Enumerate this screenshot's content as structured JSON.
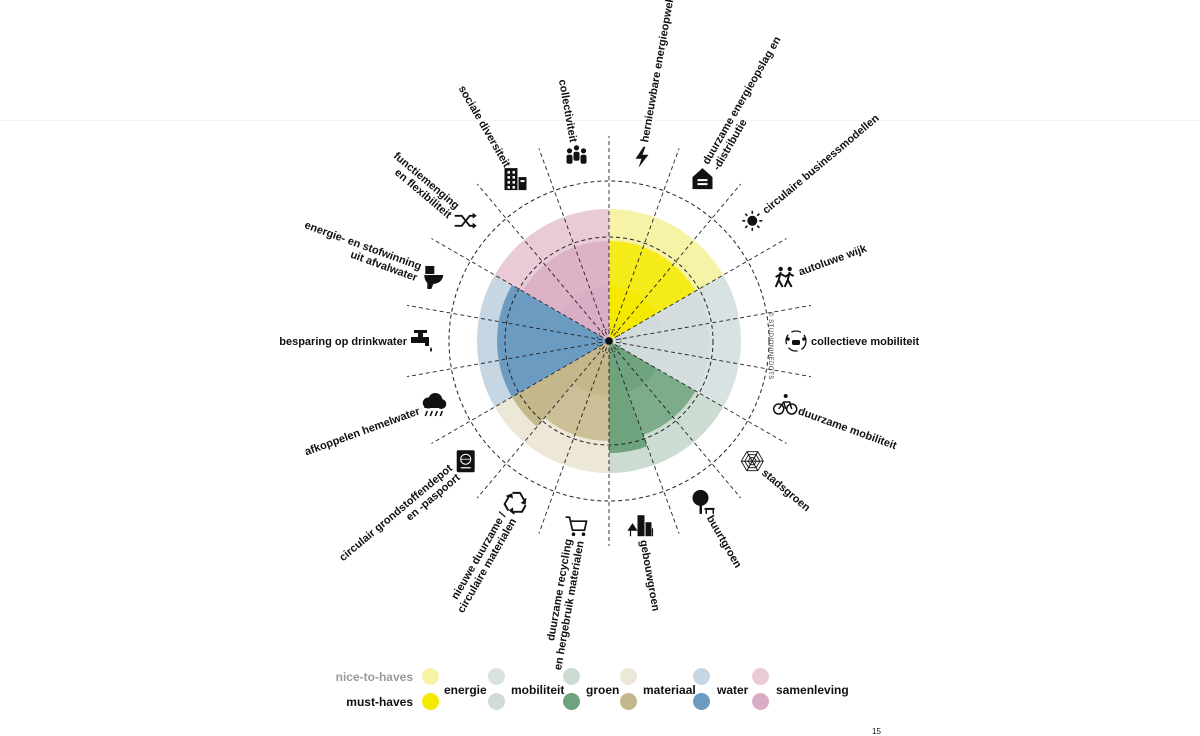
{
  "diagram": {
    "segments": [
      {
        "key": "hernieuwbare-energieopwekking",
        "lines": [
          "hernieuwbare energieopwekking"
        ],
        "icon": "lightning-icon",
        "category": "energie",
        "level": "nice-to-have"
      },
      {
        "key": "duurzame-energieopslag",
        "lines": [
          "duurzame energieopslag en",
          "-distributie"
        ],
        "icon": "storage-house-icon",
        "category": "energie",
        "level": "nice-to-have"
      },
      {
        "key": "circulaire-businessmodellen",
        "lines": [
          "circulaire businessmodellen"
        ],
        "icon": "sun-icon",
        "category": "energie",
        "level": "nice-to-have"
      },
      {
        "key": "autoluwe-wijk",
        "lines": [
          "autoluwe wijk"
        ],
        "icon": "pedestrians-icon",
        "category": "mobiliteit",
        "level": "nice-to-have"
      },
      {
        "key": "collectieve-mobiliteit",
        "lines": [
          "collectieve mobiliteit"
        ],
        "icon": "shared-car-icon",
        "category": "mobiliteit",
        "level": "nice-to-have"
      },
      {
        "key": "duurzame-mobiliteit",
        "lines": [
          "duurzame mobiliteit"
        ],
        "icon": "bicycle-icon",
        "category": "mobiliteit",
        "level": "nice-to-have"
      },
      {
        "key": "stadsgroen",
        "lines": [
          "stadsgroen"
        ],
        "icon": "spiderweb-icon",
        "category": "groen",
        "level": "nice-to-have"
      },
      {
        "key": "buurtgroen",
        "lines": [
          "buurtgroen"
        ],
        "icon": "tree-bench-icon",
        "category": "groen",
        "level": "nice-to-have"
      },
      {
        "key": "gebouwgroen",
        "lines": [
          "gebouwgroen"
        ],
        "icon": "green-building-icon",
        "category": "groen",
        "level": "must-have"
      },
      {
        "key": "duurzame-recycling",
        "lines": [
          "duurzame recycling",
          "en hergebruik materialen"
        ],
        "icon": "shopping-cart-icon",
        "category": "materiaal",
        "level": "nice-to-have"
      },
      {
        "key": "nieuwe-duurzame-materialen",
        "lines": [
          "nieuwe duurzame /",
          "circulaire materialen"
        ],
        "icon": "recycle-icon",
        "category": "materiaal",
        "level": "nice-to-have"
      },
      {
        "key": "circulair-grondstoffendepot",
        "lines": [
          "circulair grondstoffendepot",
          "en -paspoort"
        ],
        "icon": "passport-icon",
        "category": "materiaal",
        "level": "must-have"
      },
      {
        "key": "afkoppelen-hemelwater",
        "lines": [
          "afkoppelen hemelwater"
        ],
        "icon": "rain-cloud-icon",
        "category": "water",
        "level": "must-have"
      },
      {
        "key": "besparing-op-drinkwater",
        "lines": [
          "besparing op drinkwater"
        ],
        "icon": "water-tap-icon",
        "category": "water",
        "level": "must-have"
      },
      {
        "key": "energie-en-stofwinning",
        "lines": [
          "energie- en stofwinning",
          "uit afvalwater"
        ],
        "icon": "toilet-icon",
        "category": "water",
        "level": "must-have"
      },
      {
        "key": "functiemenging",
        "lines": [
          "functiemenging",
          "en flexibiliteit"
        ],
        "icon": "shuffle-icon",
        "category": "samenleving",
        "level": "nice-to-have"
      },
      {
        "key": "sociale-diversiteit",
        "lines": [
          "sociale diversiteit"
        ],
        "icon": "apartment-building-icon",
        "category": "samenleving",
        "level": "nice-to-have"
      },
      {
        "key": "collectiviteit",
        "lines": [
          "collectiviteit"
        ],
        "icon": "group-icon",
        "category": "samenleving",
        "level": "nice-to-have"
      }
    ],
    "watermark": "© STUDIONINEDOTS"
  },
  "legend": {
    "nice_label": "nice-to-haves",
    "must_label": "must-haves",
    "categories": [
      {
        "key": "energie",
        "label": "energie",
        "nice": "#f7f3a6",
        "must": "#f5e900"
      },
      {
        "key": "mobiliteit",
        "label": "mobiliteit",
        "nice": "#d9e2e3",
        "must": "#d2dbdc"
      },
      {
        "key": "groen",
        "label": "groen",
        "nice": "#cddcd2",
        "must": "#6ea37e"
      },
      {
        "key": "materiaal",
        "label": "materiaal",
        "nice": "#ece7d6",
        "must": "#c4b78b"
      },
      {
        "key": "water",
        "label": "water",
        "nice": "#c7d6e3",
        "must": "#6c9bc2"
      },
      {
        "key": "samenleving",
        "label": "samenleving",
        "nice": "#e9cbd8",
        "must": "#d9aec4"
      }
    ]
  },
  "page_number": "15"
}
